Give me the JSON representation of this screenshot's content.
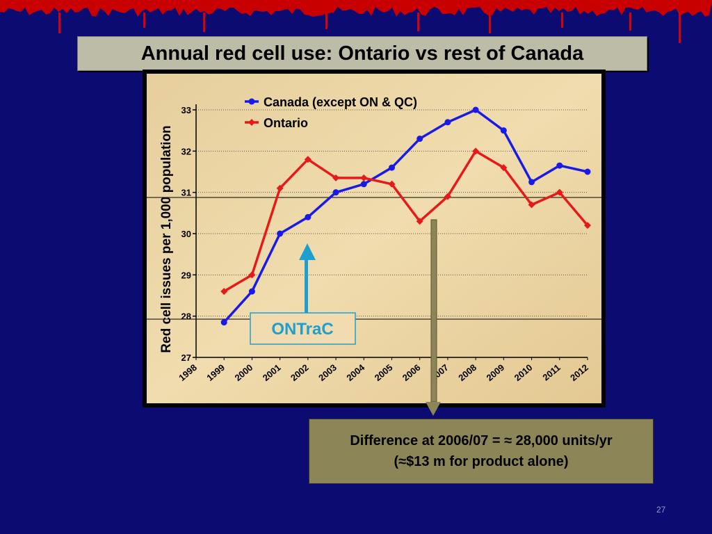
{
  "slide": {
    "title": "Annual red cell use:  Ontario vs rest of Canada",
    "page_number": "27",
    "note_line1": "Difference at 2006/07 = ≈ 28,000 units/yr",
    "note_line2": "(≈$13 m for product alone)",
    "callout_label": "ONTraC"
  },
  "colors": {
    "background": "#0b0b72",
    "canada": "#1a1ae6",
    "ontario": "#e61a1a",
    "callout": "#1f9fd0"
  },
  "chart_data": {
    "type": "line",
    "ylabel": "Red cell issues per 1,000 population",
    "ylim": [
      27,
      33
    ],
    "yticks": [
      27,
      28,
      29,
      30,
      31,
      32,
      33
    ],
    "categories": [
      "1998",
      "1999",
      "2000",
      "2001",
      "2002",
      "2003",
      "2004",
      "2005",
      "2006",
      "2007",
      "2008",
      "2009",
      "2010",
      "2011",
      "2012"
    ],
    "grid": "dotted horizontal",
    "legend_position": "top-center",
    "series": [
      {
        "name": "Canada (except ON & QC)",
        "color": "#1a1ae6",
        "values": [
          null,
          27.85,
          28.6,
          30.0,
          30.4,
          31.0,
          31.2,
          31.6,
          32.3,
          32.7,
          33.0,
          32.5,
          31.25,
          31.65,
          31.5
        ]
      },
      {
        "name": "Ontario",
        "color": "#e61a1a",
        "values": [
          null,
          28.6,
          29.0,
          31.1,
          31.8,
          31.35,
          31.35,
          31.2,
          30.3,
          30.9,
          32.0,
          31.6,
          30.7,
          31.0,
          30.2
        ]
      }
    ]
  }
}
